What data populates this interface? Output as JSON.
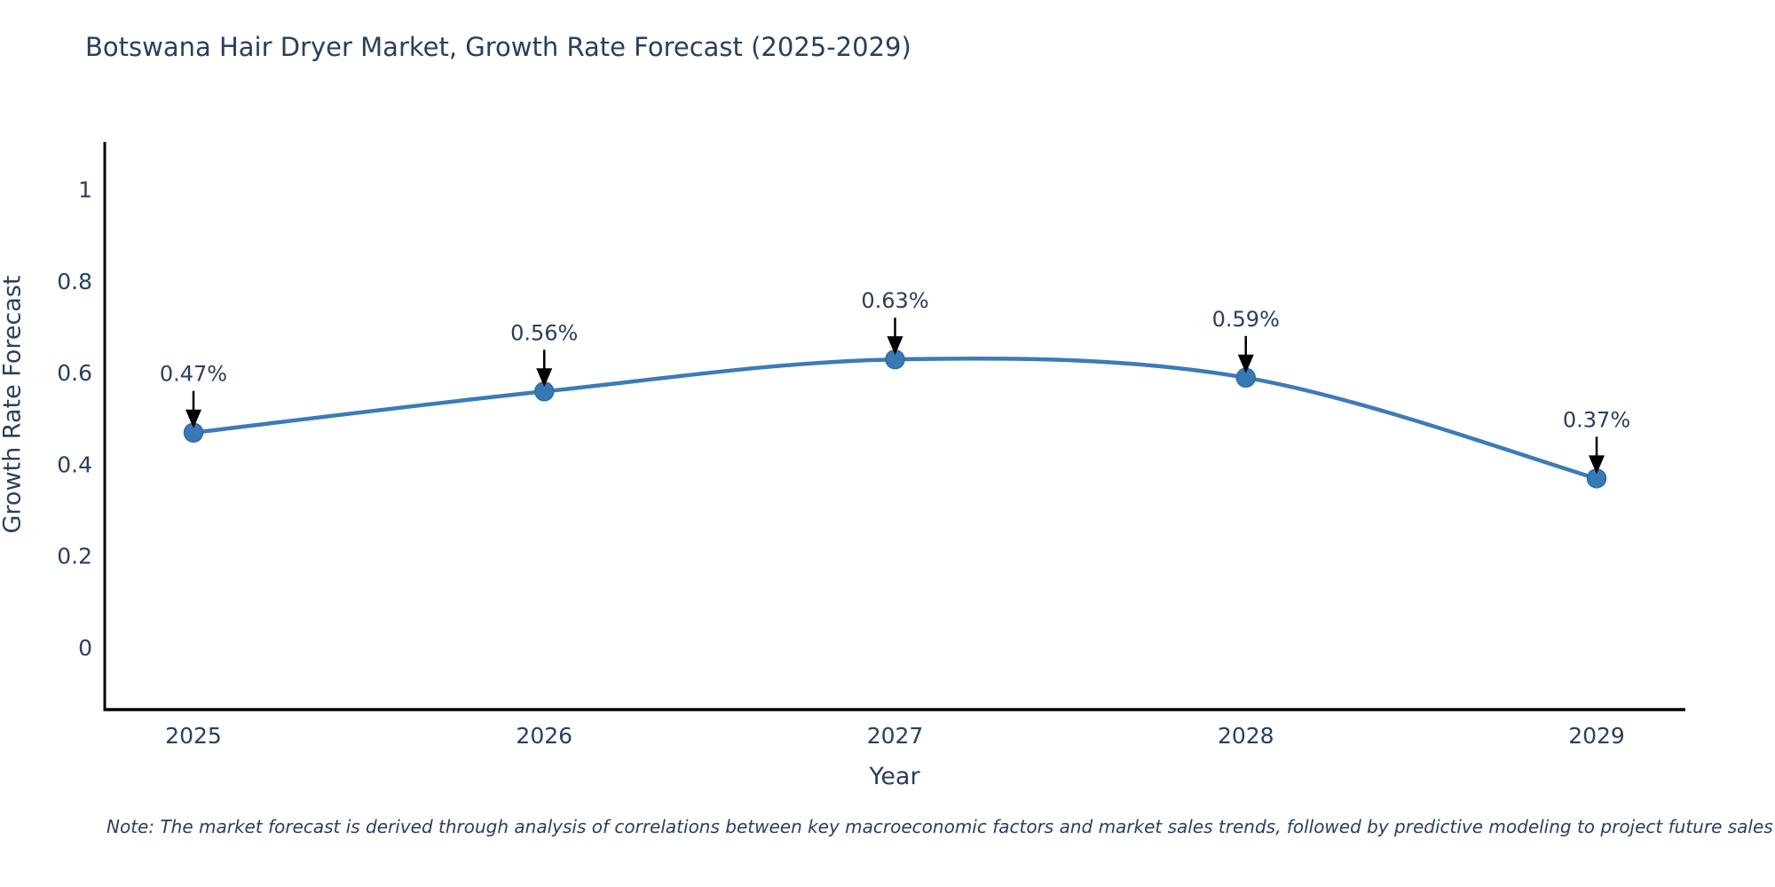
{
  "title": "Botswana Hair Dryer Market, Growth Rate Forecast (2025-2029)",
  "note": "Note: The market forecast is derived through analysis of correlations between key macroeconomic factors and market sales trends, followed by predictive modeling to project future sales",
  "chart_data": {
    "type": "line",
    "title": "Botswana Hair Dryer Market, Growth Rate Forecast (2025-2029)",
    "xlabel": "Year",
    "ylabel": "Growth Rate Forecast",
    "x": [
      2025,
      2026,
      2027,
      2028,
      2029
    ],
    "values": [
      0.47,
      0.56,
      0.63,
      0.59,
      0.37
    ],
    "point_labels": [
      "0.47%",
      "0.56%",
      "0.63%",
      "0.59%",
      "0.37%"
    ],
    "xtick_labels": [
      "2025",
      "2026",
      "2027",
      "2028",
      "2029"
    ],
    "xticks": [
      2025,
      2026,
      2027,
      2028,
      2029
    ],
    "ytick_labels": [
      "0",
      "0.2",
      "0.4",
      "0.6",
      "0.8",
      "1"
    ],
    "yticks": [
      0,
      0.2,
      0.4,
      0.6,
      0.8,
      1
    ],
    "ylim": [
      -0.135,
      1.105
    ],
    "xlim": [
      2024.747,
      2029.253
    ],
    "grid": false,
    "legend": false,
    "line_shape": "spline",
    "colors": {
      "line": "#3d7ab8",
      "marker": "#3878b4",
      "marker_edge": "#2e6da4",
      "axis": "#000000",
      "text": "#2a3f5f",
      "annotation_arrow": "#000000"
    }
  }
}
